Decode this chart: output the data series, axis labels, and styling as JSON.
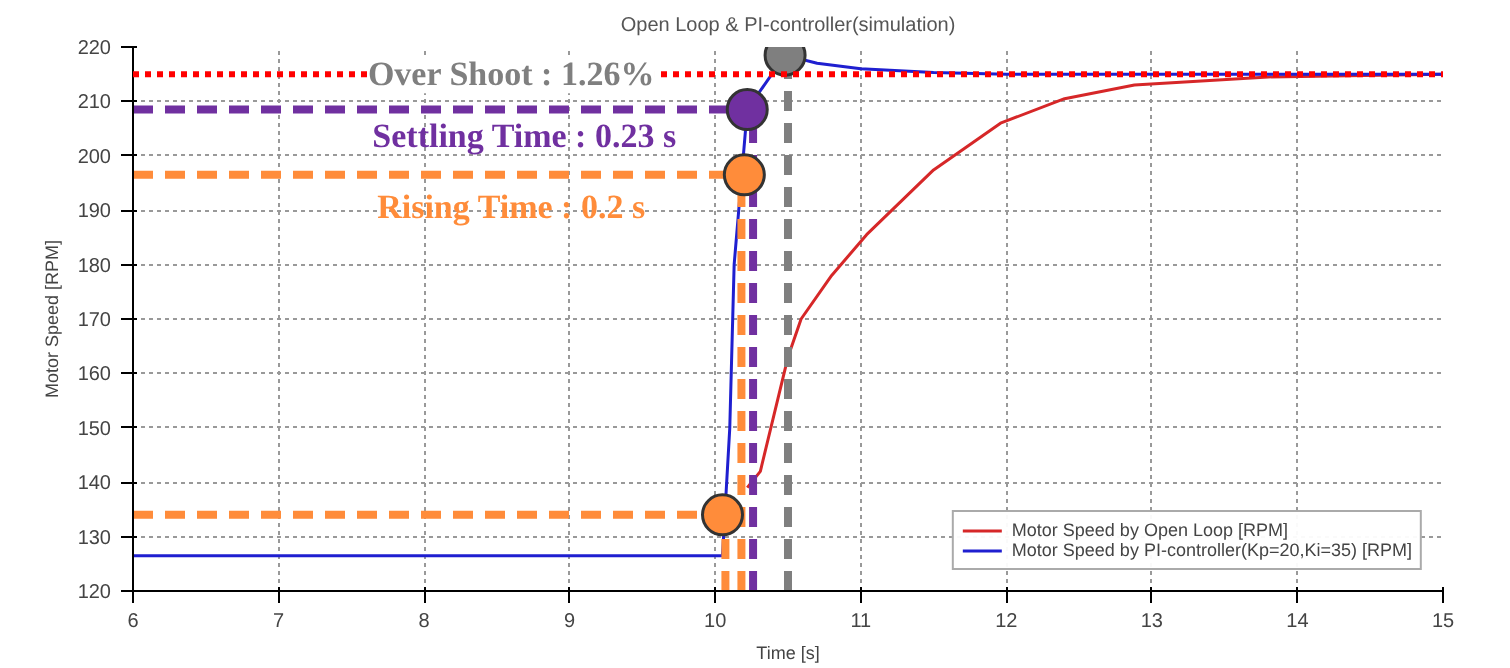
{
  "chart_data": {
    "type": "line",
    "title": "Open Loop & PI-controller(simulation)",
    "xlabel": "Time [s]",
    "ylabel": "Motor Speed [RPM]",
    "xlim": [
      6,
      15
    ],
    "xticks": [
      6,
      7,
      8,
      9,
      10,
      11,
      12,
      13,
      14,
      15
    ],
    "ylim": [
      120,
      220
    ],
    "yticks": [
      120,
      130,
      140,
      150,
      160,
      170,
      180,
      190,
      200,
      210,
      220
    ],
    "grid": true,
    "legend": "bottom right",
    "line_style": "solid",
    "series": [
      {
        "name": "Motor Speed by Open Loop [RPM]",
        "color": "#d62728",
        "x": [
          10.22,
          10.31,
          10.5,
          10.59,
          10.8,
          11.04,
          11.5,
          11.96,
          12.4,
          12.88,
          13.8,
          15
        ],
        "values": [
          139,
          142,
          163,
          170,
          178,
          185.5,
          197.4,
          206,
          210.5,
          213,
          214.5,
          215
        ]
      },
      {
        "name": "Motor Speed by PI-controller(Kp=20,Ki=35) [RPM]",
        "color": "#1f1fd0",
        "x": [
          6,
          10.05,
          10.1,
          10.13,
          10.22,
          10.48,
          10.7,
          11,
          11.5,
          12,
          15
        ],
        "values": [
          126.5,
          126.5,
          150,
          180,
          208.5,
          218.5,
          217,
          216,
          215.3,
          215,
          215
        ]
      },
      {
        "color": "#ff8c3a",
        "line_style": "dashed",
        "x": [
          6,
          10.05
        ],
        "values": [
          134,
          134
        ]
      },
      {
        "color": "#ff8c3a",
        "line_style": "dashed",
        "x": [
          10.07,
          10.07
        ],
        "values": [
          120,
          134
        ]
      },
      {
        "color": "#ff8c3a",
        "line_style": "dashed",
        "x": [
          6,
          10.2
        ],
        "values": [
          196.5,
          196.5
        ]
      },
      {
        "color": "#ff8c3a",
        "line_style": "dashed",
        "x": [
          10.18,
          10.18
        ],
        "values": [
          120,
          196.5
        ]
      },
      {
        "color": "#7030a0",
        "line_style": "dashed",
        "x": [
          6,
          10.22
        ],
        "values": [
          208.5,
          208.5
        ]
      },
      {
        "color": "#7030a0",
        "line_style": "dashed",
        "x": [
          10.26,
          10.26
        ],
        "values": [
          120,
          208.5
        ]
      },
      {
        "color": "#7f7f7f",
        "line_style": "dashed",
        "x": [
          10.5,
          10.5
        ],
        "values": [
          120,
          218.5
        ]
      },
      {
        "type": "scatter",
        "marker": "circle",
        "x": [
          10.05,
          10.2,
          10.22,
          10.48
        ],
        "values": [
          134,
          196.5,
          208.5,
          218.5
        ],
        "colors": [
          "#ff8c3a",
          "#ff8c3a",
          "#7030a0",
          "#7f7f7f"
        ]
      }
    ],
    "ref_lines": [
      {
        "axis": "y",
        "value": 215,
        "color": "#ff0000",
        "line_style": "dotted"
      }
    ],
    "annotations": [
      {
        "text": "Over Shoot : 1.26%",
        "x": 8.6,
        "y": 215
      },
      "Settling Time : 0.23 s",
      "Rising Time : 0.2 s"
    ]
  }
}
